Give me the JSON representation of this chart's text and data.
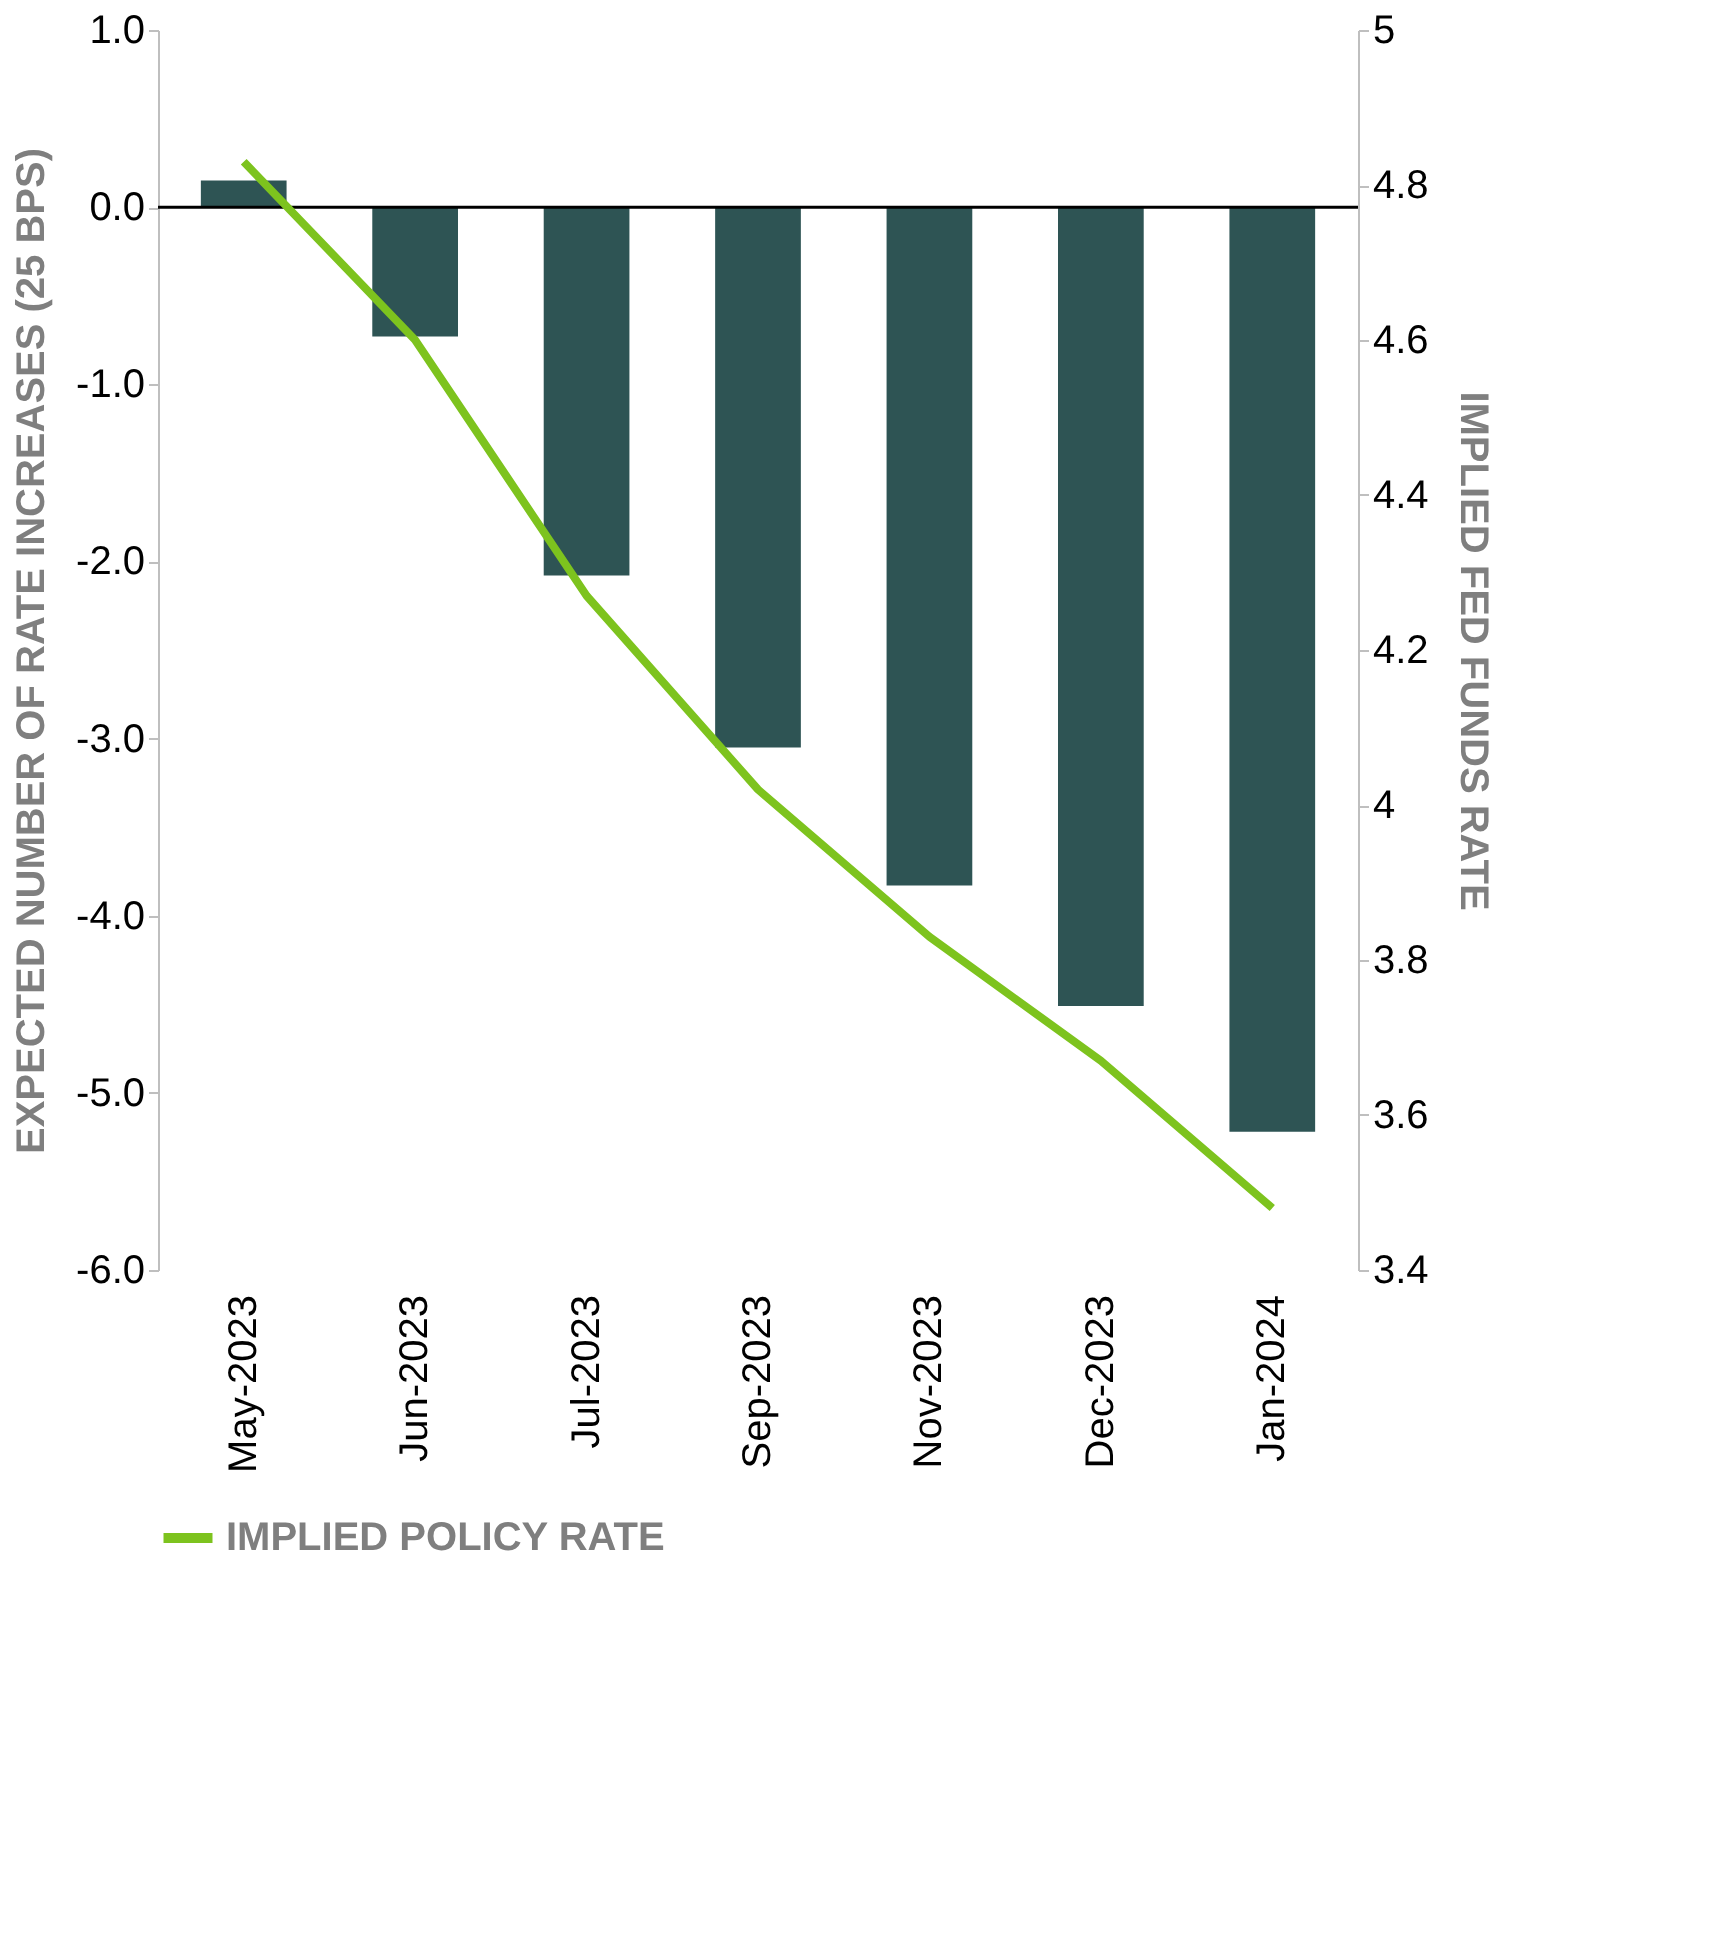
{
  "chart_data": {
    "type": "bar",
    "ylabel": "EXPECTED NUMBER OF RATE INCREASES (25 BPS)",
    "y2label": "IMPLIED FED FUNDS RATE",
    "categories": [
      "May-2023",
      "Jun-2023",
      "Jul-2023",
      "Sep-2023",
      "Nov-2023",
      "Dec-2023",
      "Jan-2024"
    ],
    "series": [
      {
        "color": "#2e5454",
        "values": [
          0.15,
          -0.73,
          -2.08,
          -3.05,
          -3.83,
          -4.51,
          -5.22
        ]
      },
      {
        "type": "line",
        "name": "IMPLIED POLICY RATE",
        "color": "#7dc31e",
        "axis": "y2",
        "values": [
          4.83,
          4.6,
          4.27,
          4.02,
          3.83,
          3.67,
          3.48
        ]
      }
    ],
    "ylim": [
      -6,
      1
    ],
    "yticks": [
      {
        "value": 1,
        "label": "1.0"
      },
      {
        "value": 0,
        "label": "0.0"
      },
      {
        "value": -1,
        "label": "-1.0"
      },
      {
        "value": -2,
        "label": "-2.0"
      },
      {
        "value": -3,
        "label": "-3.0"
      },
      {
        "value": -4,
        "label": "-4.0"
      },
      {
        "value": -5,
        "label": "-5.0"
      },
      {
        "value": -6,
        "label": "-6.0"
      }
    ],
    "y2lim": [
      3.4,
      5
    ],
    "y2ticks": [
      3.4,
      3.6,
      3.8,
      4,
      4.2,
      4.4,
      4.6,
      4.8,
      5
    ],
    "ref_lines": [
      {
        "axis": "y",
        "value": 0,
        "color": "#000000"
      }
    ],
    "legend": "bottom",
    "grid": false,
    "marker": "none",
    "line_style": "solid"
  }
}
